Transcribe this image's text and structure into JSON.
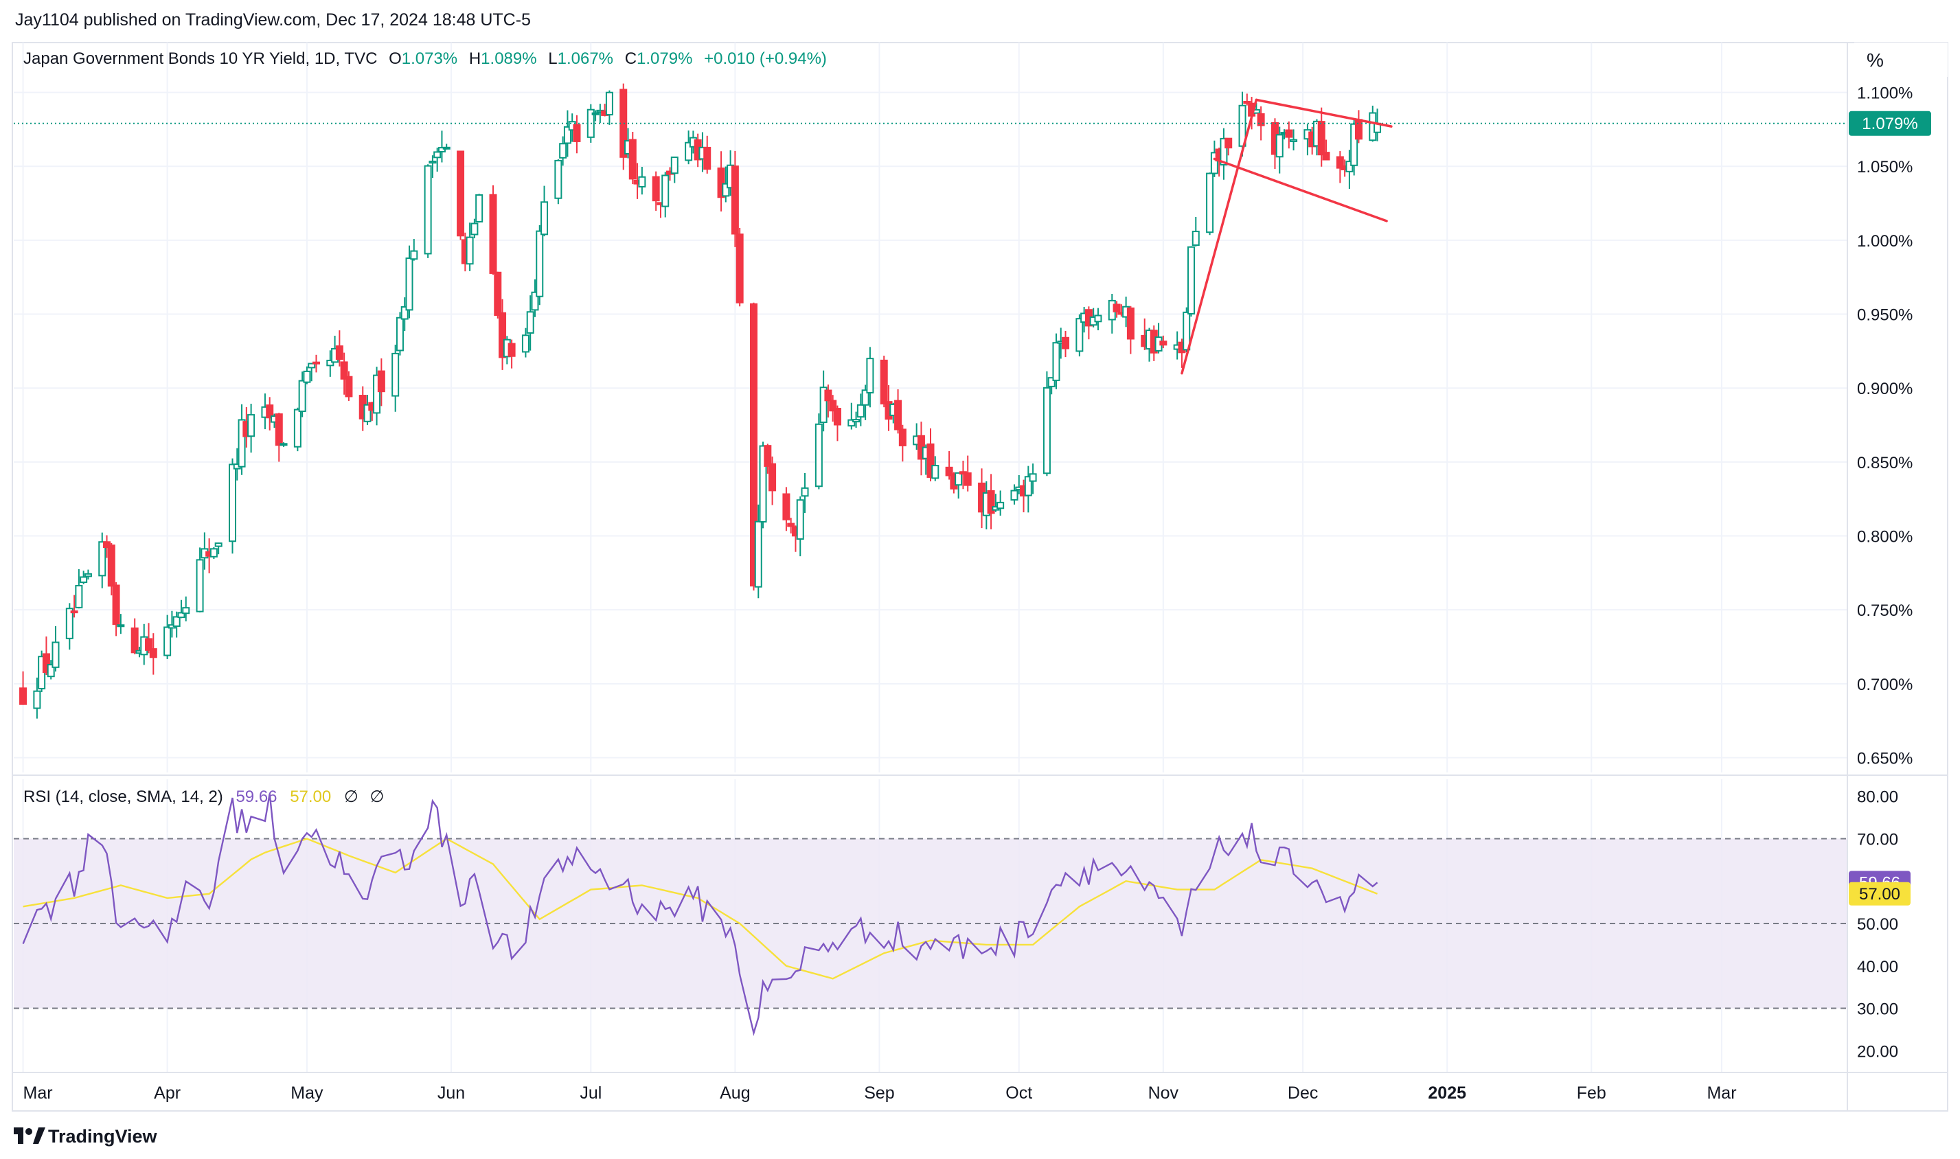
{
  "header": {
    "published": "Jay1104 published on TradingView.com, Dec 17, 2024 18:48 UTC-5"
  },
  "legend": {
    "symbol": "Japan Government Bonds 10 YR Yield, 1D, TVC",
    "o_label": "O",
    "o_value": "1.073%",
    "h_label": "H",
    "h_value": "1.089%",
    "l_label": "L",
    "l_value": "1.067%",
    "c_label": "C",
    "c_value": "1.079%",
    "change": "+0.010 (+0.94%)"
  },
  "unit_button": "%",
  "last_price_label": "1.079%",
  "rsi_legend": {
    "label": "RSI (14, close, SMA, 14, 2)",
    "rsi_value": "59.66",
    "sma_value": "57.00",
    "extra1": "∅",
    "extra2": "∅"
  },
  "rsi_badges": {
    "rsi": "59.66",
    "sma": "57.00"
  },
  "branding": {
    "logo_text": "TradingView"
  },
  "colors": {
    "up": "#089981",
    "down": "#f23645",
    "rsi_line": "#7e57c2",
    "rsi_sma": "#f7e13b",
    "rsi_band": "#ede7f6",
    "trendline": "#f23645"
  },
  "chart_data": [
    {
      "type": "candlestick",
      "title": "Japan Government Bonds 10 YR Yield, 1D, TVC",
      "y_unit": "%",
      "ylim": [
        0.64,
        1.13
      ],
      "y_ticks": [
        "1.100%",
        "1.050%",
        "1.000%",
        "0.950%",
        "0.900%",
        "0.850%",
        "0.800%",
        "0.750%",
        "0.700%",
        "0.650%"
      ],
      "y_tick_values": [
        1.1,
        1.05,
        1.0,
        0.95,
        0.9,
        0.85,
        0.8,
        0.75,
        0.7,
        0.65
      ],
      "x_ticks": [
        "Mar",
        "Apr",
        "May",
        "Jun",
        "Jul",
        "Aug",
        "Sep",
        "Oct",
        "Nov",
        "Dec",
        "2025",
        "Feb",
        "Mar"
      ],
      "x_tick_dates": [
        "2024-03-01",
        "2024-04-01",
        "2024-05-01",
        "2024-06-01",
        "2024-07-01",
        "2024-08-01",
        "2024-09-01",
        "2024-10-01",
        "2024-11-01",
        "2024-12-01",
        "2025-01-01",
        "2025-02-01",
        "2025-03-01"
      ],
      "last_value": 1.079,
      "close_path": [
        [
          "2024-03-01",
          0.695
        ],
        [
          "2024-03-08",
          0.72
        ],
        [
          "2024-03-15",
          0.77
        ],
        [
          "2024-03-19",
          0.79
        ],
        [
          "2024-03-22",
          0.73
        ],
        [
          "2024-03-27",
          0.73
        ],
        [
          "2024-03-29",
          0.72
        ],
        [
          "2024-04-03",
          0.75
        ],
        [
          "2024-04-08",
          0.78
        ],
        [
          "2024-04-12",
          0.8
        ],
        [
          "2024-04-17",
          0.87
        ],
        [
          "2024-04-23",
          0.88
        ],
        [
          "2024-04-26",
          0.86
        ],
        [
          "2024-04-30",
          0.9
        ],
        [
          "2024-05-07",
          0.92
        ],
        [
          "2024-05-13",
          0.87
        ],
        [
          "2024-05-16",
          0.9
        ],
        [
          "2024-05-20",
          0.93
        ],
        [
          "2024-05-24",
          1.0
        ],
        [
          "2024-05-29",
          1.07
        ],
        [
          "2024-05-31",
          1.06
        ],
        [
          "2024-06-04",
          0.98
        ],
        [
          "2024-06-07",
          1.03
        ],
        [
          "2024-06-12",
          0.93
        ],
        [
          "2024-06-17",
          0.93
        ],
        [
          "2024-06-21",
          1.02
        ],
        [
          "2024-06-26",
          1.07
        ],
        [
          "2024-07-01",
          1.08
        ],
        [
          "2024-07-05",
          1.09
        ],
        [
          "2024-07-10",
          1.05
        ],
        [
          "2024-07-16",
          1.03
        ],
        [
          "2024-07-19",
          1.06
        ],
        [
          "2024-07-24",
          1.06
        ],
        [
          "2024-07-29",
          1.02
        ],
        [
          "2024-07-31",
          1.05
        ],
        [
          "2024-08-02",
          0.95
        ],
        [
          "2024-08-05",
          0.77
        ],
        [
          "2024-08-07",
          0.87
        ],
        [
          "2024-08-09",
          0.84
        ],
        [
          "2024-08-14",
          0.81
        ],
        [
          "2024-08-20",
          0.89
        ],
        [
          "2024-08-26",
          0.88
        ],
        [
          "2024-08-30",
          0.91
        ],
        [
          "2024-09-03",
          0.89
        ],
        [
          "2024-09-06",
          0.87
        ],
        [
          "2024-09-11",
          0.85
        ],
        [
          "2024-09-17",
          0.83
        ],
        [
          "2024-09-20",
          0.84
        ],
        [
          "2024-09-26",
          0.81
        ],
        [
          "2024-09-30",
          0.84
        ],
        [
          "2024-10-03",
          0.83
        ],
        [
          "2024-10-09",
          0.92
        ],
        [
          "2024-10-15",
          0.95
        ],
        [
          "2024-10-21",
          0.96
        ],
        [
          "2024-10-25",
          0.94
        ],
        [
          "2024-10-31",
          0.93
        ],
        [
          "2024-11-05",
          0.92
        ],
        [
          "2024-11-07",
          0.99
        ],
        [
          "2024-11-12",
          1.05
        ],
        [
          "2024-11-15",
          1.07
        ],
        [
          "2024-11-20",
          1.09
        ],
        [
          "2024-11-25",
          1.06
        ],
        [
          "2024-11-29",
          1.07
        ],
        [
          "2024-12-04",
          1.07
        ],
        [
          "2024-12-09",
          1.04
        ],
        [
          "2024-12-12",
          1.07
        ],
        [
          "2024-12-17",
          1.079
        ]
      ]
    },
    {
      "type": "line",
      "title": "RSI (14, close, SMA, 14, 2)",
      "ylim": [
        16,
        84
      ],
      "y_ticks": [
        "80.00",
        "70.00",
        "50.00",
        "40.00",
        "30.00",
        "20.00"
      ],
      "y_tick_values": [
        80,
        70,
        50,
        40,
        30,
        20
      ],
      "band": [
        30,
        70
      ],
      "midline": 50,
      "series": [
        {
          "name": "RSI",
          "values": [
            [
              "2024-03-01",
              47
            ],
            [
              "2024-03-06",
              54
            ],
            [
              "2024-03-12",
              60
            ],
            [
              "2024-03-15",
              68
            ],
            [
              "2024-03-19",
              70
            ],
            [
              "2024-03-21",
              50
            ],
            [
              "2024-03-27",
              52
            ],
            [
              "2024-04-01",
              43
            ],
            [
              "2024-04-05",
              60
            ],
            [
              "2024-04-10",
              55
            ],
            [
              "2024-04-15",
              76
            ],
            [
              "2024-04-18",
              74
            ],
            [
              "2024-04-23",
              77
            ],
            [
              "2024-04-26",
              64
            ],
            [
              "2024-05-01",
              72
            ],
            [
              "2024-05-07",
              66
            ],
            [
              "2024-05-10",
              60
            ],
            [
              "2024-05-14",
              53
            ],
            [
              "2024-05-17",
              68
            ],
            [
              "2024-05-22",
              64
            ],
            [
              "2024-05-28",
              78
            ],
            [
              "2024-06-03",
              56
            ],
            [
              "2024-06-06",
              62
            ],
            [
              "2024-06-10",
              48
            ],
            [
              "2024-06-14",
              43
            ],
            [
              "2024-06-19",
              52
            ],
            [
              "2024-06-24",
              64
            ],
            [
              "2024-06-28",
              66
            ],
            [
              "2024-07-03",
              62
            ],
            [
              "2024-07-09",
              58
            ],
            [
              "2024-07-15",
              52
            ],
            [
              "2024-07-19",
              55
            ],
            [
              "2024-07-24",
              55
            ],
            [
              "2024-07-30",
              50
            ],
            [
              "2024-08-02",
              40
            ],
            [
              "2024-08-05",
              24
            ],
            [
              "2024-08-07",
              37
            ],
            [
              "2024-08-12",
              34
            ],
            [
              "2024-08-16",
              42
            ],
            [
              "2024-08-22",
              46
            ],
            [
              "2024-08-28",
              48
            ],
            [
              "2024-09-03",
              48
            ],
            [
              "2024-09-09",
              44
            ],
            [
              "2024-09-13",
              46
            ],
            [
              "2024-09-19",
              44
            ],
            [
              "2024-09-24",
              45
            ],
            [
              "2024-09-30",
              46
            ],
            [
              "2024-10-04",
              51
            ],
            [
              "2024-10-09",
              60
            ],
            [
              "2024-10-15",
              63
            ],
            [
              "2024-10-21",
              64
            ],
            [
              "2024-10-25",
              60
            ],
            [
              "2024-10-31",
              55
            ],
            [
              "2024-11-05",
              48
            ],
            [
              "2024-11-08",
              58
            ],
            [
              "2024-11-14",
              68
            ],
            [
              "2024-11-19",
              72
            ],
            [
              "2024-11-22",
              66
            ],
            [
              "2024-11-27",
              64
            ],
            [
              "2024-12-03",
              62
            ],
            [
              "2024-12-09",
              53
            ],
            [
              "2024-12-12",
              58
            ],
            [
              "2024-12-17",
              59.66
            ]
          ]
        },
        {
          "name": "SMA",
          "values": [
            [
              "2024-03-01",
              54
            ],
            [
              "2024-03-12",
              56
            ],
            [
              "2024-03-22",
              59
            ],
            [
              "2024-04-01",
              56
            ],
            [
              "2024-04-10",
              57
            ],
            [
              "2024-04-20",
              66
            ],
            [
              "2024-05-01",
              70
            ],
            [
              "2024-05-10",
              66
            ],
            [
              "2024-05-20",
              62
            ],
            [
              "2024-05-31",
              70
            ],
            [
              "2024-06-10",
              64
            ],
            [
              "2024-06-20",
              51
            ],
            [
              "2024-07-01",
              58
            ],
            [
              "2024-07-12",
              59
            ],
            [
              "2024-07-24",
              56
            ],
            [
              "2024-08-02",
              50
            ],
            [
              "2024-08-12",
              40
            ],
            [
              "2024-08-22",
              37
            ],
            [
              "2024-09-02",
              43
            ],
            [
              "2024-09-12",
              46
            ],
            [
              "2024-09-24",
              45
            ],
            [
              "2024-10-04",
              45
            ],
            [
              "2024-10-14",
              54
            ],
            [
              "2024-10-24",
              60
            ],
            [
              "2024-11-04",
              58
            ],
            [
              "2024-11-12",
              58
            ],
            [
              "2024-11-22",
              65
            ],
            [
              "2024-12-03",
              63
            ],
            [
              "2024-12-17",
              57.0
            ]
          ]
        }
      ]
    }
  ],
  "annotations": {
    "flag_trendlines": [
      {
        "from": [
          "2024-11-05",
          0.91
        ],
        "to": [
          "2024-11-21",
          1.095
        ]
      },
      {
        "from": [
          "2024-11-21",
          1.095
        ],
        "to": [
          "2024-12-20",
          1.077
        ]
      },
      {
        "from": [
          "2024-11-12",
          1.055
        ],
        "to": [
          "2024-12-19",
          1.013
        ]
      }
    ]
  }
}
